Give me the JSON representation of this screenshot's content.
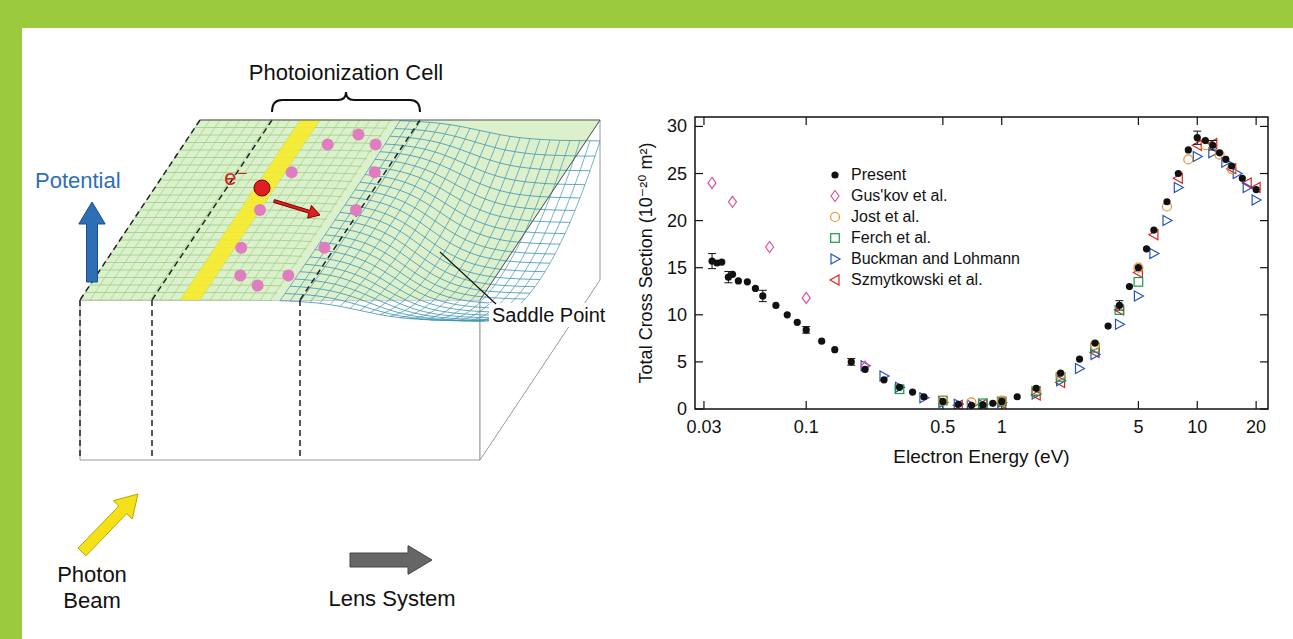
{
  "diagram": {
    "labels": {
      "cell": "Photoionization Cell",
      "potential": "Potential",
      "electron": "e⁻",
      "saddle": "Saddle Point",
      "photon": "Photon Beam",
      "lens": "Lens System"
    }
  },
  "chart_data": {
    "type": "scatter",
    "x_label": "Electron Energy (eV)",
    "y_label": "Total Cross Section (10⁻²⁰ m²)",
    "log": "x",
    "grid": false,
    "legend": "upper left",
    "xlim": [
      0.027,
      23
    ],
    "ylim": [
      0,
      31
    ],
    "xticks": [
      0.03,
      0.1,
      0.5,
      1,
      5,
      10,
      20
    ],
    "yticks": [
      0,
      5,
      10,
      15,
      20,
      25,
      30
    ],
    "series": [
      {
        "name": "Present",
        "color": "#111111",
        "marker": "filled-circle",
        "x": [
          0.033,
          0.035,
          0.037,
          0.04,
          0.042,
          0.045,
          0.05,
          0.055,
          0.06,
          0.07,
          0.08,
          0.09,
          0.1,
          0.12,
          0.14,
          0.17,
          0.2,
          0.25,
          0.3,
          0.35,
          0.4,
          0.5,
          0.6,
          0.7,
          0.8,
          0.9,
          1,
          1.2,
          1.5,
          2,
          2.5,
          3,
          3.5,
          4,
          4.5,
          5,
          5.5,
          6,
          7,
          8,
          9,
          10,
          11,
          12,
          13,
          14,
          15,
          17,
          20
        ],
        "values": [
          15.7,
          15.5,
          15.6,
          14.0,
          14.3,
          13.6,
          13.5,
          12.8,
          12.0,
          11.0,
          10.0,
          9.2,
          8.4,
          7.2,
          6.3,
          5.0,
          4.2,
          3.1,
          2.3,
          1.8,
          1.3,
          0.8,
          0.5,
          0.4,
          0.45,
          0.6,
          0.8,
          1.3,
          2.2,
          3.8,
          5.3,
          7.0,
          8.8,
          11.0,
          13.0,
          15.0,
          17.0,
          19.0,
          22.0,
          25.0,
          27.5,
          28.8,
          28.5,
          28.0,
          27.2,
          26.5,
          25.8,
          24.5,
          23.3
        ],
        "errors": [
          0.8,
          null,
          null,
          0.6,
          null,
          null,
          null,
          null,
          0.6,
          null,
          null,
          null,
          0.35,
          null,
          null,
          0.35,
          null,
          null,
          null,
          null,
          null,
          null,
          null,
          null,
          null,
          null,
          null,
          null,
          null,
          null,
          null,
          null,
          null,
          0.5,
          null,
          null,
          null,
          null,
          null,
          null,
          null,
          0.7,
          null,
          0.5,
          null,
          null,
          null,
          null,
          null
        ]
      },
      {
        "name": "Gus'kov et al.",
        "color": "#e0509e",
        "marker": "diamond",
        "x": [
          0.033,
          0.042,
          0.065,
          0.1,
          0.2
        ],
        "values": [
          24,
          22,
          17.2,
          11.8,
          4.5
        ]
      },
      {
        "name": "Jost et al.",
        "color": "#e8902a",
        "marker": "circle",
        "x": [
          0.5,
          0.7,
          1,
          1.5,
          2,
          3,
          5,
          7,
          9,
          11,
          13,
          15
        ],
        "values": [
          0.9,
          0.7,
          0.9,
          2.0,
          3.6,
          6.8,
          15,
          21.5,
          26.5,
          28,
          27,
          25.5
        ]
      },
      {
        "name": "Ferch et al.",
        "color": "#1a9a4a",
        "marker": "square",
        "x": [
          0.3,
          0.5,
          0.8,
          1,
          1.5,
          2,
          3,
          4,
          5
        ],
        "values": [
          2.1,
          0.9,
          0.6,
          0.8,
          1.9,
          3.4,
          6.5,
          10.5,
          13.5
        ]
      },
      {
        "name": "Buckman and Lohmann",
        "color": "#2255bb",
        "marker": "triangle-right",
        "x": [
          0.2,
          0.25,
          0.3,
          0.4,
          0.5,
          0.6,
          0.7,
          0.8,
          1,
          1.5,
          2,
          2.5,
          3,
          4,
          5,
          6,
          7,
          8,
          10,
          12,
          14,
          16,
          18,
          20
        ],
        "values": [
          4.6,
          3.5,
          2.3,
          1.2,
          0.7,
          0.5,
          0.4,
          0.45,
          0.7,
          1.6,
          3.0,
          4.3,
          5.8,
          9.0,
          12,
          16.5,
          20,
          23.5,
          26.8,
          27.2,
          26.2,
          25,
          23.5,
          22.2
        ]
      },
      {
        "name": "Szmytkowski et al.",
        "color": "#dd2222",
        "marker": "triangle-left",
        "x": [
          0.6,
          0.8,
          1,
          1.5,
          2,
          3,
          4,
          5,
          6,
          8,
          10,
          12,
          15,
          18,
          20
        ],
        "values": [
          0.4,
          0.5,
          0.6,
          1.5,
          2.8,
          6,
          10.5,
          14.5,
          18.5,
          24.5,
          28,
          28.2,
          25.5,
          24,
          23.5
        ]
      }
    ]
  }
}
